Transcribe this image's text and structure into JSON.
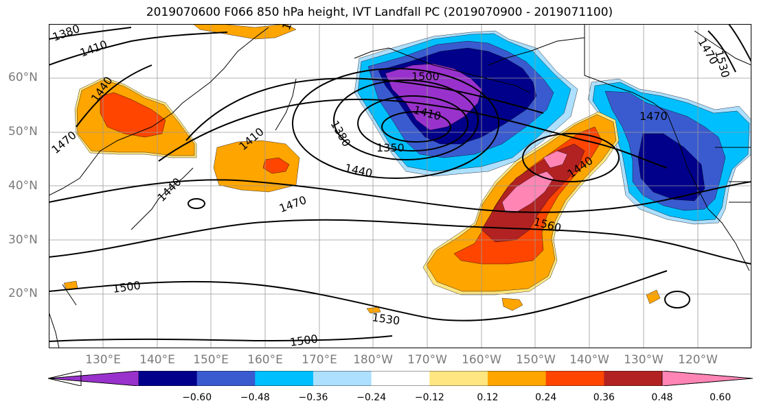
{
  "title": "2019070600 F066 850 hPa height, IVT Landfall PC (2019070900 - 2019071100)",
  "map": {
    "projection": "PlateCarree",
    "extent_lon": [
      120,
      250
    ],
    "extent_lat": [
      10,
      70
    ],
    "lat_labels": [
      "60°N",
      "50°N",
      "40°N",
      "30°N",
      "20°N"
    ],
    "lon_labels": [
      "130°E",
      "140°E",
      "150°E",
      "160°E",
      "170°E",
      "180°W",
      "170°W",
      "160°W",
      "150°W",
      "140°W",
      "130°W",
      "120°W"
    ],
    "contour_labels": [
      "1380",
      "1410",
      "1440",
      "1470",
      "1500",
      "1350",
      "1380",
      "1410",
      "1440",
      "1470",
      "1500",
      "1530",
      "1560",
      "1470",
      "1410",
      "1440",
      "1500",
      "1440",
      "1470",
      "1500",
      "1530"
    ]
  },
  "colorbar": {
    "ticks": [
      "−0.60",
      "−0.48",
      "−0.36",
      "−0.24",
      "−0.12",
      "0.12",
      "0.24",
      "0.36",
      "0.48",
      "0.60"
    ],
    "colors": [
      "#9932CC",
      "#00008B",
      "#3A5BCF",
      "#00BFFF",
      "#ADDFFF",
      "#FFFFFF",
      "#FFE680",
      "#FFA500",
      "#FF4500",
      "#B22222",
      "#FF85B5"
    ]
  }
}
